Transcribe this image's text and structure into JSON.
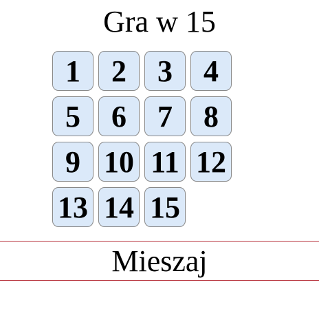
{
  "game": {
    "title": "Gra w 15",
    "shuffle_label": "Mieszaj"
  },
  "colors": {
    "tile_background": "#dbe9f9",
    "tile_border": "#888888",
    "shuffle_border": "#b7323c"
  },
  "board": {
    "rows": 4,
    "cols": 4,
    "tiles": [
      "1",
      "2",
      "3",
      "4",
      "5",
      "6",
      "7",
      "8",
      "9",
      "10",
      "11",
      "12",
      "13",
      "14",
      "15",
      ""
    ]
  }
}
